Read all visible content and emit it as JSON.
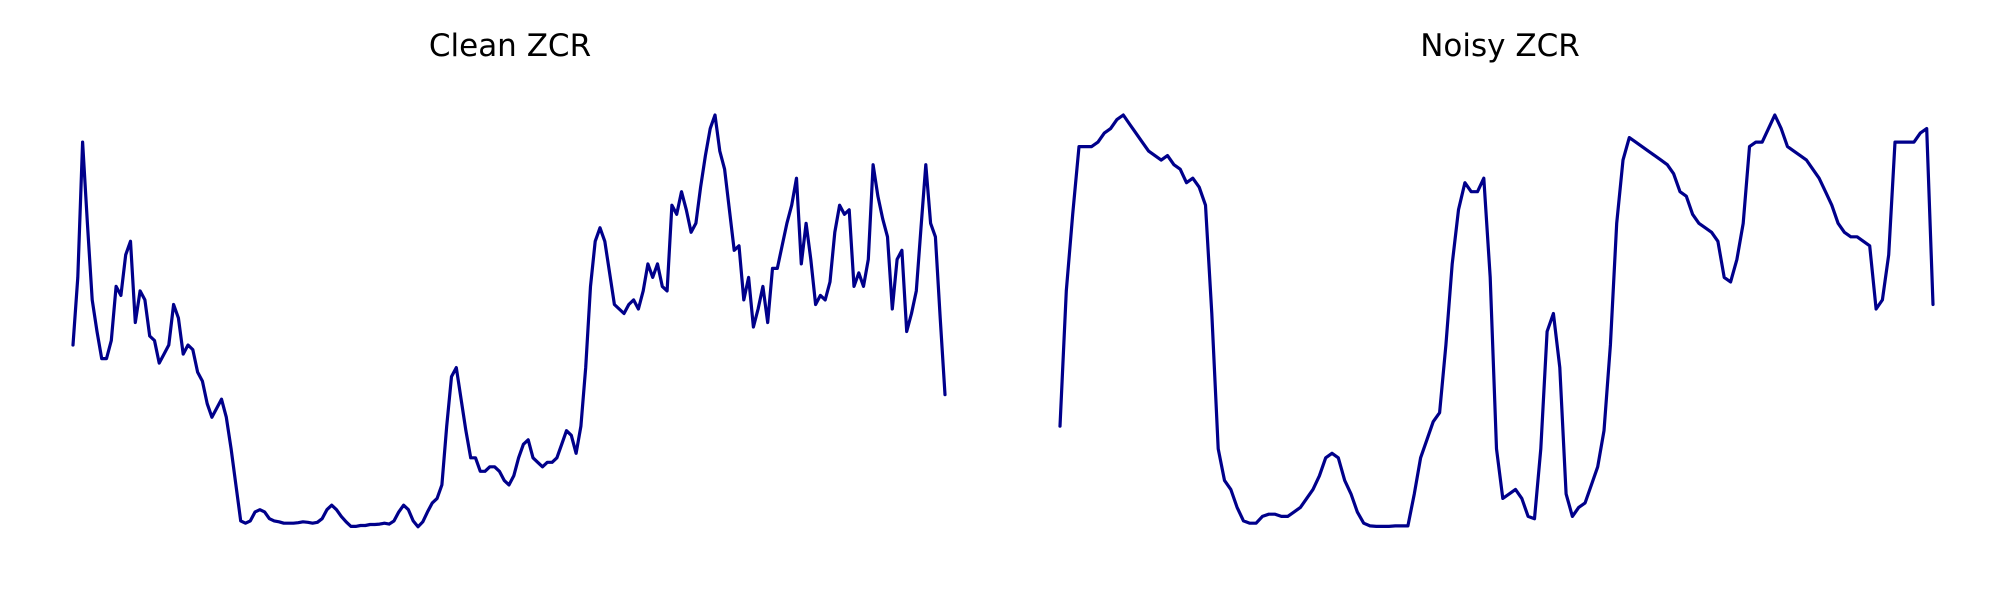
{
  "colors": {
    "line": "#00008b",
    "background": "#ffffff"
  },
  "chart_data": [
    {
      "type": "line",
      "title": "Clean ZCR",
      "axes_visible": false,
      "grid": false,
      "legend": "none",
      "ylim": [
        0,
        1
      ],
      "series": [
        {
          "values": [
            0.45,
            0.6,
            0.9,
            0.72,
            0.55,
            0.48,
            0.42,
            0.42,
            0.46,
            0.58,
            0.56,
            0.65,
            0.68,
            0.5,
            0.57,
            0.55,
            0.47,
            0.46,
            0.41,
            0.43,
            0.45,
            0.54,
            0.51,
            0.43,
            0.45,
            0.44,
            0.39,
            0.37,
            0.32,
            0.29,
            0.31,
            0.33,
            0.29,
            0.22,
            0.14,
            0.06,
            0.055,
            0.06,
            0.08,
            0.085,
            0.08,
            0.065,
            0.06,
            0.058,
            0.055,
            0.055,
            0.055,
            0.056,
            0.058,
            0.057,
            0.055,
            0.057,
            0.065,
            0.085,
            0.095,
            0.085,
            0.07,
            0.058,
            0.048,
            0.048,
            0.05,
            0.05,
            0.052,
            0.052,
            0.053,
            0.055,
            0.053,
            0.06,
            0.08,
            0.095,
            0.085,
            0.06,
            0.047,
            0.058,
            0.08,
            0.1,
            0.11,
            0.14,
            0.27,
            0.38,
            0.4,
            0.33,
            0.26,
            0.2,
            0.2,
            0.17,
            0.17,
            0.18,
            0.18,
            0.17,
            0.15,
            0.14,
            0.16,
            0.2,
            0.23,
            0.24,
            0.2,
            0.19,
            0.18,
            0.19,
            0.19,
            0.2,
            0.23,
            0.26,
            0.25,
            0.21,
            0.27,
            0.4,
            0.58,
            0.68,
            0.71,
            0.68,
            0.61,
            0.54,
            0.53,
            0.52,
            0.54,
            0.55,
            0.53,
            0.57,
            0.63,
            0.6,
            0.63,
            0.58,
            0.57,
            0.76,
            0.74,
            0.79,
            0.75,
            0.7,
            0.72,
            0.8,
            0.87,
            0.93,
            0.96,
            0.88,
            0.84,
            0.75,
            0.66,
            0.67,
            0.55,
            0.6,
            0.49,
            0.53,
            0.58,
            0.5,
            0.62,
            0.62,
            0.67,
            0.72,
            0.76,
            0.82,
            0.63,
            0.72,
            0.64,
            0.54,
            0.56,
            0.55,
            0.59,
            0.7,
            0.76,
            0.74,
            0.75,
            0.58,
            0.61,
            0.58,
            0.64,
            0.85,
            0.78,
            0.73,
            0.69,
            0.53,
            0.64,
            0.66,
            0.48,
            0.52,
            0.57,
            0.71,
            0.85,
            0.72,
            0.69,
            0.51,
            0.34
          ]
        }
      ]
    },
    {
      "type": "line",
      "title": "Noisy ZCR",
      "axes_visible": false,
      "grid": false,
      "legend": "none",
      "ylim": [
        0,
        1
      ],
      "series": [
        {
          "values": [
            0.27,
            0.57,
            0.74,
            0.89,
            0.89,
            0.89,
            0.9,
            0.92,
            0.93,
            0.95,
            0.96,
            0.94,
            0.92,
            0.9,
            0.88,
            0.87,
            0.86,
            0.87,
            0.85,
            0.84,
            0.81,
            0.82,
            0.8,
            0.76,
            0.52,
            0.22,
            0.15,
            0.13,
            0.09,
            0.06,
            0.055,
            0.055,
            0.07,
            0.075,
            0.075,
            0.07,
            0.07,
            0.08,
            0.09,
            0.11,
            0.13,
            0.16,
            0.2,
            0.21,
            0.2,
            0.15,
            0.12,
            0.08,
            0.055,
            0.049,
            0.048,
            0.048,
            0.048,
            0.049,
            0.049,
            0.049,
            0.12,
            0.2,
            0.24,
            0.28,
            0.3,
            0.45,
            0.63,
            0.75,
            0.81,
            0.79,
            0.79,
            0.82,
            0.6,
            0.22,
            0.11,
            0.12,
            0.13,
            0.11,
            0.07,
            0.065,
            0.22,
            0.48,
            0.52,
            0.4,
            0.12,
            0.07,
            0.09,
            0.1,
            0.14,
            0.18,
            0.26,
            0.45,
            0.72,
            0.86,
            0.91,
            0.9,
            0.89,
            0.88,
            0.87,
            0.86,
            0.85,
            0.83,
            0.79,
            0.78,
            0.74,
            0.72,
            0.71,
            0.7,
            0.68,
            0.6,
            0.59,
            0.64,
            0.72,
            0.89,
            0.9,
            0.9,
            0.93,
            0.96,
            0.93,
            0.89,
            0.88,
            0.87,
            0.86,
            0.84,
            0.82,
            0.79,
            0.76,
            0.72,
            0.7,
            0.69,
            0.69,
            0.68,
            0.67,
            0.53,
            0.55,
            0.65,
            0.9,
            0.9,
            0.9,
            0.9,
            0.92,
            0.93,
            0.54
          ]
        }
      ]
    }
  ]
}
